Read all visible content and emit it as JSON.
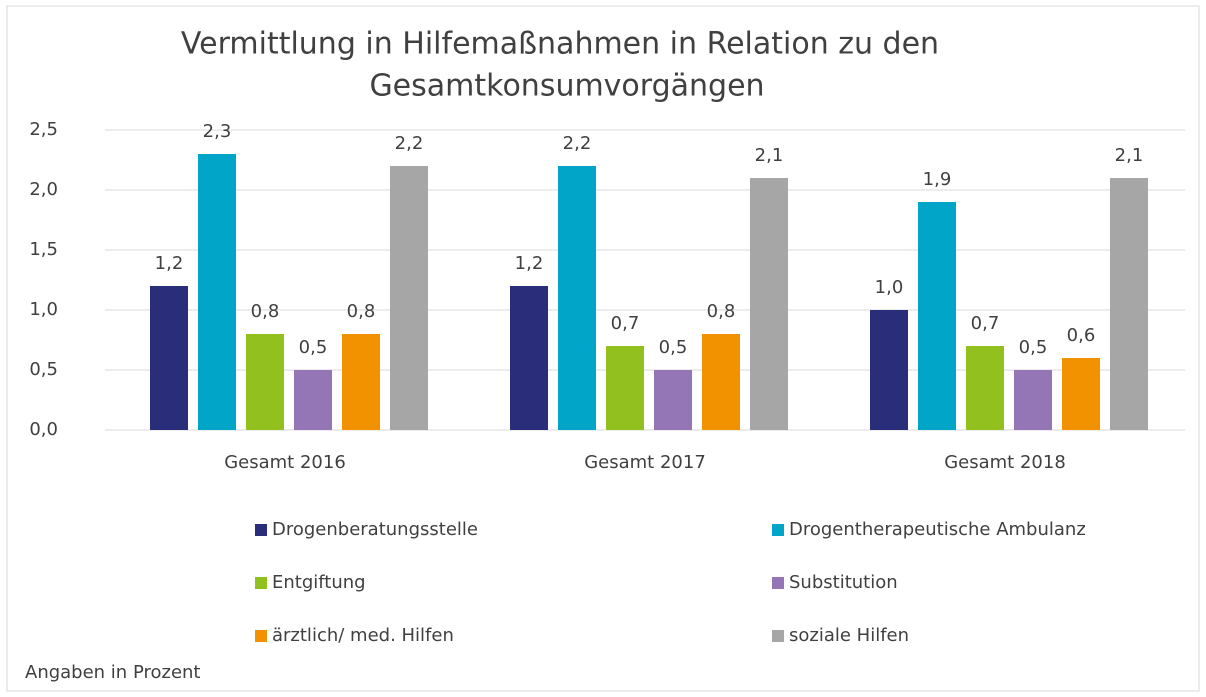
{
  "chart_data": {
    "type": "bar",
    "title": [
      "Vermittlung in Hilfemaßnahmen in Relation zu den",
      "Gesamtkonsumvorgängen"
    ],
    "categories": [
      "Gesamt 2016",
      "Gesamt 2017",
      "Gesamt 2018"
    ],
    "series": [
      {
        "name": "Drogenberatungsstelle",
        "color": "#2a2e7a",
        "values": [
          1.2,
          1.2,
          1.0
        ],
        "value_labels": [
          "1,2",
          "1,2",
          "1,0"
        ]
      },
      {
        "name": "Drogentherapeutische Ambulanz",
        "color": "#00a5c8",
        "values": [
          2.3,
          2.2,
          1.9
        ],
        "value_labels": [
          "2,3",
          "2,2",
          "1,9"
        ]
      },
      {
        "name": "Entgiftung",
        "color": "#92c01f",
        "values": [
          0.8,
          0.7,
          0.7
        ],
        "value_labels": [
          "0,8",
          "0,7",
          "0,7"
        ]
      },
      {
        "name": "Substitution",
        "color": "#9475b6",
        "values": [
          0.5,
          0.5,
          0.5
        ],
        "value_labels": [
          "0,5",
          "0,5",
          "0,5"
        ]
      },
      {
        "name": "ärztlich/ med. Hilfen",
        "color": "#f39200",
        "values": [
          0.8,
          0.8,
          0.6
        ],
        "value_labels": [
          "0,8",
          "0,8",
          "0,6"
        ]
      },
      {
        "name": "soziale Hilfen",
        "color": "#a6a6a6",
        "values": [
          2.2,
          2.1,
          2.1
        ],
        "value_labels": [
          "2,2",
          "2,1",
          "2,1"
        ]
      }
    ],
    "ylim": [
      0,
      2.5
    ],
    "yticks": [
      {
        "value": 0,
        "label": "0,0"
      },
      {
        "value": 0.5,
        "label": "0,5"
      },
      {
        "value": 1,
        "label": "1,0"
      },
      {
        "value": 1.5,
        "label": "1,5"
      },
      {
        "value": 2,
        "label": "2,0"
      },
      {
        "value": 2.5,
        "label": "2,5"
      }
    ],
    "grid": true,
    "legend": "bottom",
    "annotations": [
      "Angaben in Prozent"
    ]
  }
}
